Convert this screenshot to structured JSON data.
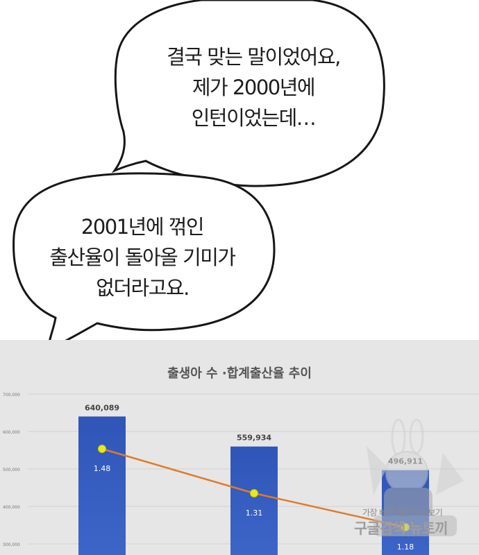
{
  "bubbles": [
    {
      "lines": [
        "결국 맞는 말이었어요,",
        "제가 2000년에",
        "인턴이었는데…"
      ]
    },
    {
      "lines": [
        "2001년에 꺾인",
        "출산율이 돌아올 기미가",
        "없더라고요."
      ]
    }
  ],
  "chart_data": {
    "type": "bar",
    "title": "출생아 수 ·합계출산율 추이",
    "categories": [
      "",
      "",
      ""
    ],
    "series": [
      {
        "values": [
          640089,
          559934,
          496911
        ],
        "labels": [
          "640,089",
          "559,934",
          "496,911"
        ],
        "color": "#3355b0"
      },
      {
        "values": [
          1.48,
          1.31,
          1.18
        ],
        "labels": [
          "1.48",
          "1.31",
          "1.18"
        ],
        "type": "line",
        "color": "#e07b2a",
        "marker_color": "#e8e820"
      }
    ],
    "y_ticks": [
      "700,000",
      "600,000",
      "500,000",
      "400,000",
      "300,000"
    ],
    "y_tick_values": [
      700000,
      600000,
      500000,
      400000,
      300000
    ],
    "ylim": [
      300000,
      700000
    ],
    "grid": true
  },
  "watermark": {
    "line1": "가장 빠른 웹툰 미리보기",
    "line2": "구글검색 뉴토끼"
  }
}
